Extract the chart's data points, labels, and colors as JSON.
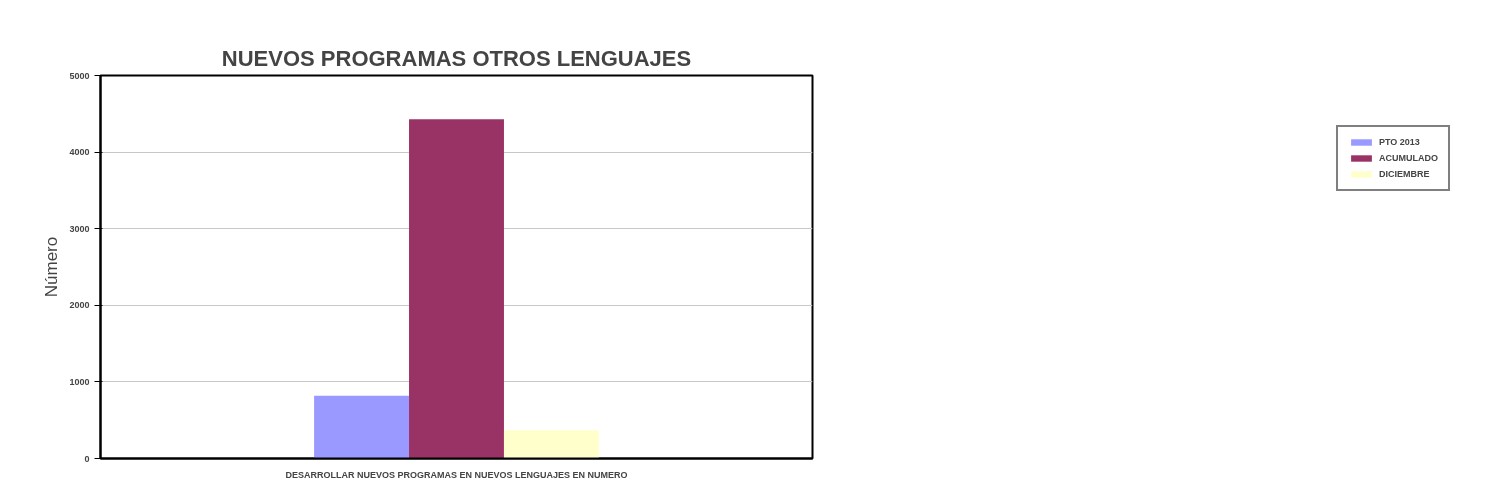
{
  "chart_data": {
    "type": "bar",
    "title": "NUEVOS PROGRAMAS OTROS LENGUAJES",
    "ylabel": "Número",
    "categories": [
      "DESARROLLAR NUEVOS PROGRAMAS EN NUEVOS LENGUAJES EN NUMERO"
    ],
    "series": [
      {
        "name": "PTO 2013",
        "color": "#9999ff",
        "values": [
          820
        ]
      },
      {
        "name": "ACUMULADO",
        "color": "#993366",
        "values": [
          4430
        ]
      },
      {
        "name": "DICIEMBRE",
        "color": "#ffffcc",
        "values": [
          370
        ]
      }
    ],
    "ylim": [
      0,
      5000
    ],
    "yticks": [
      0,
      1000,
      2000,
      3000,
      4000,
      5000
    ],
    "grid": "y",
    "legend": "right"
  }
}
